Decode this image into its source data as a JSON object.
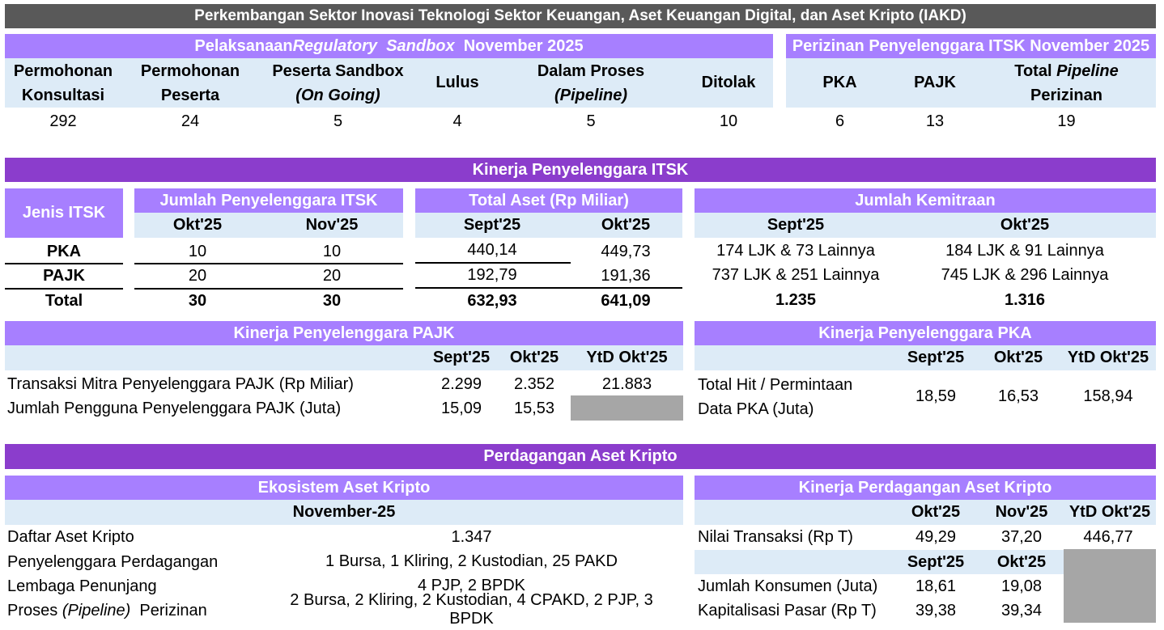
{
  "title": "Perkembangan Sektor Inovasi Teknologi Sektor Keuangan, Aset Keuangan Digital, dan Aset Kripto (IAKD)",
  "sandbox": {
    "title_pre": "Pelaksanaan ",
    "title_em": "Regulatory  Sandbox",
    "title_post": "  November 2025",
    "h1a": "Permohonan",
    "h1b": "Konsultasi",
    "h2a": "Permohonan",
    "h2b": "Peserta",
    "h3a": "Peserta Sandbox",
    "h3b": "(On Going)",
    "h4": "Lulus",
    "h5a": "Dalam Proses",
    "h5b": "(Pipeline)",
    "h6": "Ditolak",
    "v1": "292",
    "v2": "24",
    "v3": "5",
    "v4": "4",
    "v5": "5",
    "v6": "10"
  },
  "perizinan": {
    "title": "Perizinan Penyelenggara ITSK November 2025",
    "h1": "PKA",
    "h2": "PAJK",
    "h3a_pre": "Total ",
    "h3a_em": "Pipeline",
    "h3b": "Perizinan",
    "v1": "6",
    "v2": "13",
    "v3": "19"
  },
  "kinerja_itsk": {
    "title": "Kinerja Penyelenggara ITSK",
    "jenis_header": "Jenis ITSK",
    "rows": [
      "PKA",
      "PAJK",
      "Total"
    ],
    "jumlah": {
      "title": "Jumlah Penyelenggara ITSK",
      "col1": "Okt'25",
      "col2": "Nov'25",
      "r1": [
        "10",
        "10"
      ],
      "r2": [
        "20",
        "20"
      ],
      "r3": [
        "30",
        "30"
      ]
    },
    "aset": {
      "title": "Total Aset (Rp Miliar)",
      "col1": "Sept'25",
      "col2": "Okt'25",
      "r1": [
        "440,14",
        "449,73"
      ],
      "r2": [
        "192,79",
        "191,36"
      ],
      "r3": [
        "632,93",
        "641,09"
      ]
    },
    "kemitraan": {
      "title": "Jumlah Kemitraan",
      "col1": "Sept'25",
      "col2": "Okt'25",
      "r1": [
        "174 LJK & 73 Lainnya",
        "184 LJK & 91 Lainnya"
      ],
      "r2": [
        "737 LJK & 251 Lainnya",
        "745 LJK & 296 Lainnya"
      ],
      "r3": [
        "1.235",
        "1.316"
      ]
    }
  },
  "pajk": {
    "title": "Kinerja Penyelenggara PAJK",
    "col1": "Sept'25",
    "col2": "Okt'25",
    "col3": "YtD Okt'25",
    "r1_label": "Transaksi Mitra Penyelenggara PAJK (Rp Miliar)",
    "r1": [
      "2.299",
      "2.352",
      "21.883"
    ],
    "r2_label": "Jumlah Pengguna Penyelenggara PAJK (Juta)",
    "r2": [
      "15,09",
      "15,53"
    ]
  },
  "pka": {
    "title": "Kinerja Penyelenggara PKA",
    "col1": "Sept'25",
    "col2": "Okt'25",
    "col3": "YtD Okt'25",
    "label_a": "Total Hit / Permintaan",
    "label_b": "Data PKA (Juta)",
    "values": [
      "18,59",
      "16,53",
      "158,94"
    ]
  },
  "kripto": {
    "title": "Perdagangan Aset Kripto",
    "ekosistem": {
      "title": "Ekosistem Aset Kripto",
      "subheader": "November-25",
      "r1_label": "Daftar Aset Kripto",
      "r1_value": "1.347",
      "r2_label": "Penyelenggara Perdagangan",
      "r2_value": "1 Bursa, 1 Kliring, 2 Kustodian, 25 PAKD",
      "r3_label": "Lembaga Penunjang",
      "r3_value": "4 PJP, 2 BPDK",
      "r4_label_pre": "Proses ",
      "r4_label_em": "(Pipeline)",
      "r4_label_post": "  Perizinan",
      "r4_value": "2 Bursa, 2 Kliring, 2 Kustodian, 4 CPAKD, 2 PJP, 3 BPDK"
    },
    "kinerja": {
      "title": "Kinerja Perdagangan Aset Kripto",
      "col1": "Okt'25",
      "col2": "Nov'25",
      "col3": "YtD Okt'25",
      "r1_label": "Nilai Transaksi (Rp T)",
      "r1": [
        "49,29",
        "37,20",
        "446,77"
      ],
      "sub_col1": "Sept'25",
      "sub_col2": "Okt'25",
      "r2_label": "Jumlah Konsumen (Juta)",
      "r2": [
        "18,61",
        "19,08"
      ],
      "r3_label": "Kapitalisasi Pasar (Rp T)",
      "r3": [
        "39,38",
        "39,34"
      ]
    }
  },
  "colors": {
    "title_bar": "#595959",
    "section_bar": "#8b3dcc",
    "sub_header": "#a77fff",
    "column_header": "#ddebf7",
    "empty_cell": "#a6a6a6"
  }
}
